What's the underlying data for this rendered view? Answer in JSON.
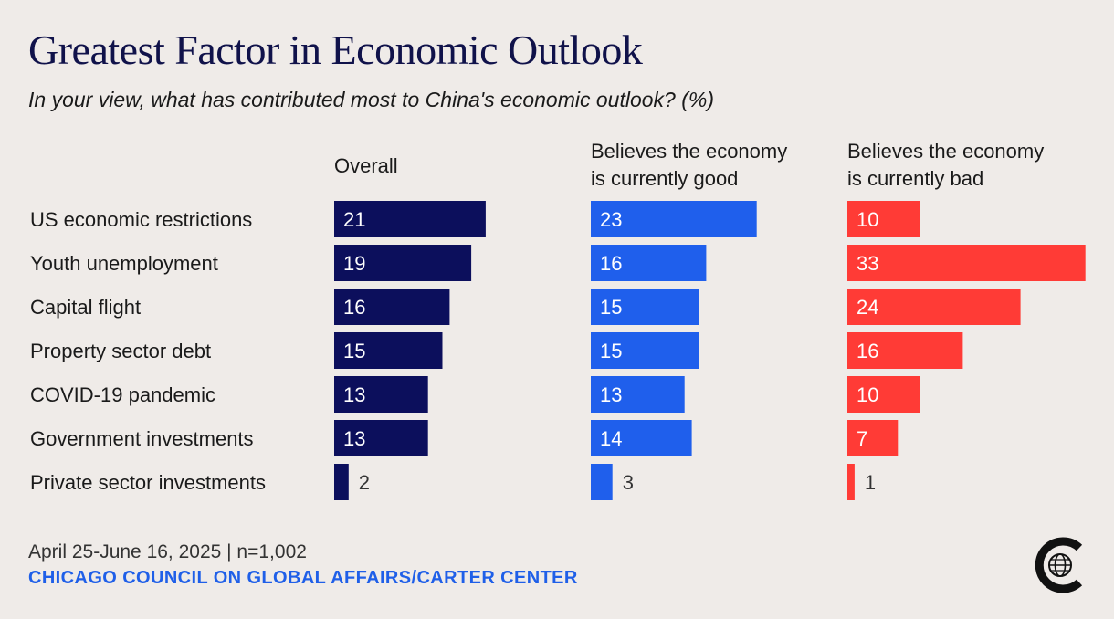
{
  "header": {
    "title": "Greatest Factor in Economic Outlook",
    "subtitle": "In your view, what has contributed most to China's economic outlook? (%)"
  },
  "columns": [
    {
      "line1": "Overall",
      "line2": ""
    },
    {
      "line1": "Believes the economy",
      "line2": "is currently good"
    },
    {
      "line1": "Believes the economy",
      "line2": "is currently bad"
    }
  ],
  "footer": {
    "date_n": "April 25-June 16, 2025 | n=1,002",
    "source": "CHICAGO COUNCIL ON GLOBAL AFFAIRS/CARTER CENTER"
  },
  "logo": {
    "icon": "globe-c-logo-icon"
  },
  "chart_data": {
    "type": "bar",
    "orientation": "horizontal",
    "categories": [
      "US economic restrictions",
      "Youth unemployment",
      "Capital flight",
      "Property sector debt",
      "COVID-19 pandemic",
      "Government investments",
      "Private sector investments"
    ],
    "series": [
      {
        "name": "Overall",
        "color": "#0c0f5c",
        "values": [
          21,
          19,
          16,
          15,
          13,
          13,
          2
        ]
      },
      {
        "name": "Believes the economy is currently good",
        "color": "#1f5fec",
        "values": [
          23,
          16,
          15,
          15,
          13,
          14,
          3
        ]
      },
      {
        "name": "Believes the economy is currently bad",
        "color": "#ff3b36",
        "values": [
          10,
          33,
          24,
          16,
          10,
          7,
          1
        ]
      }
    ],
    "xlim": [
      0,
      33
    ],
    "grid": false
  }
}
